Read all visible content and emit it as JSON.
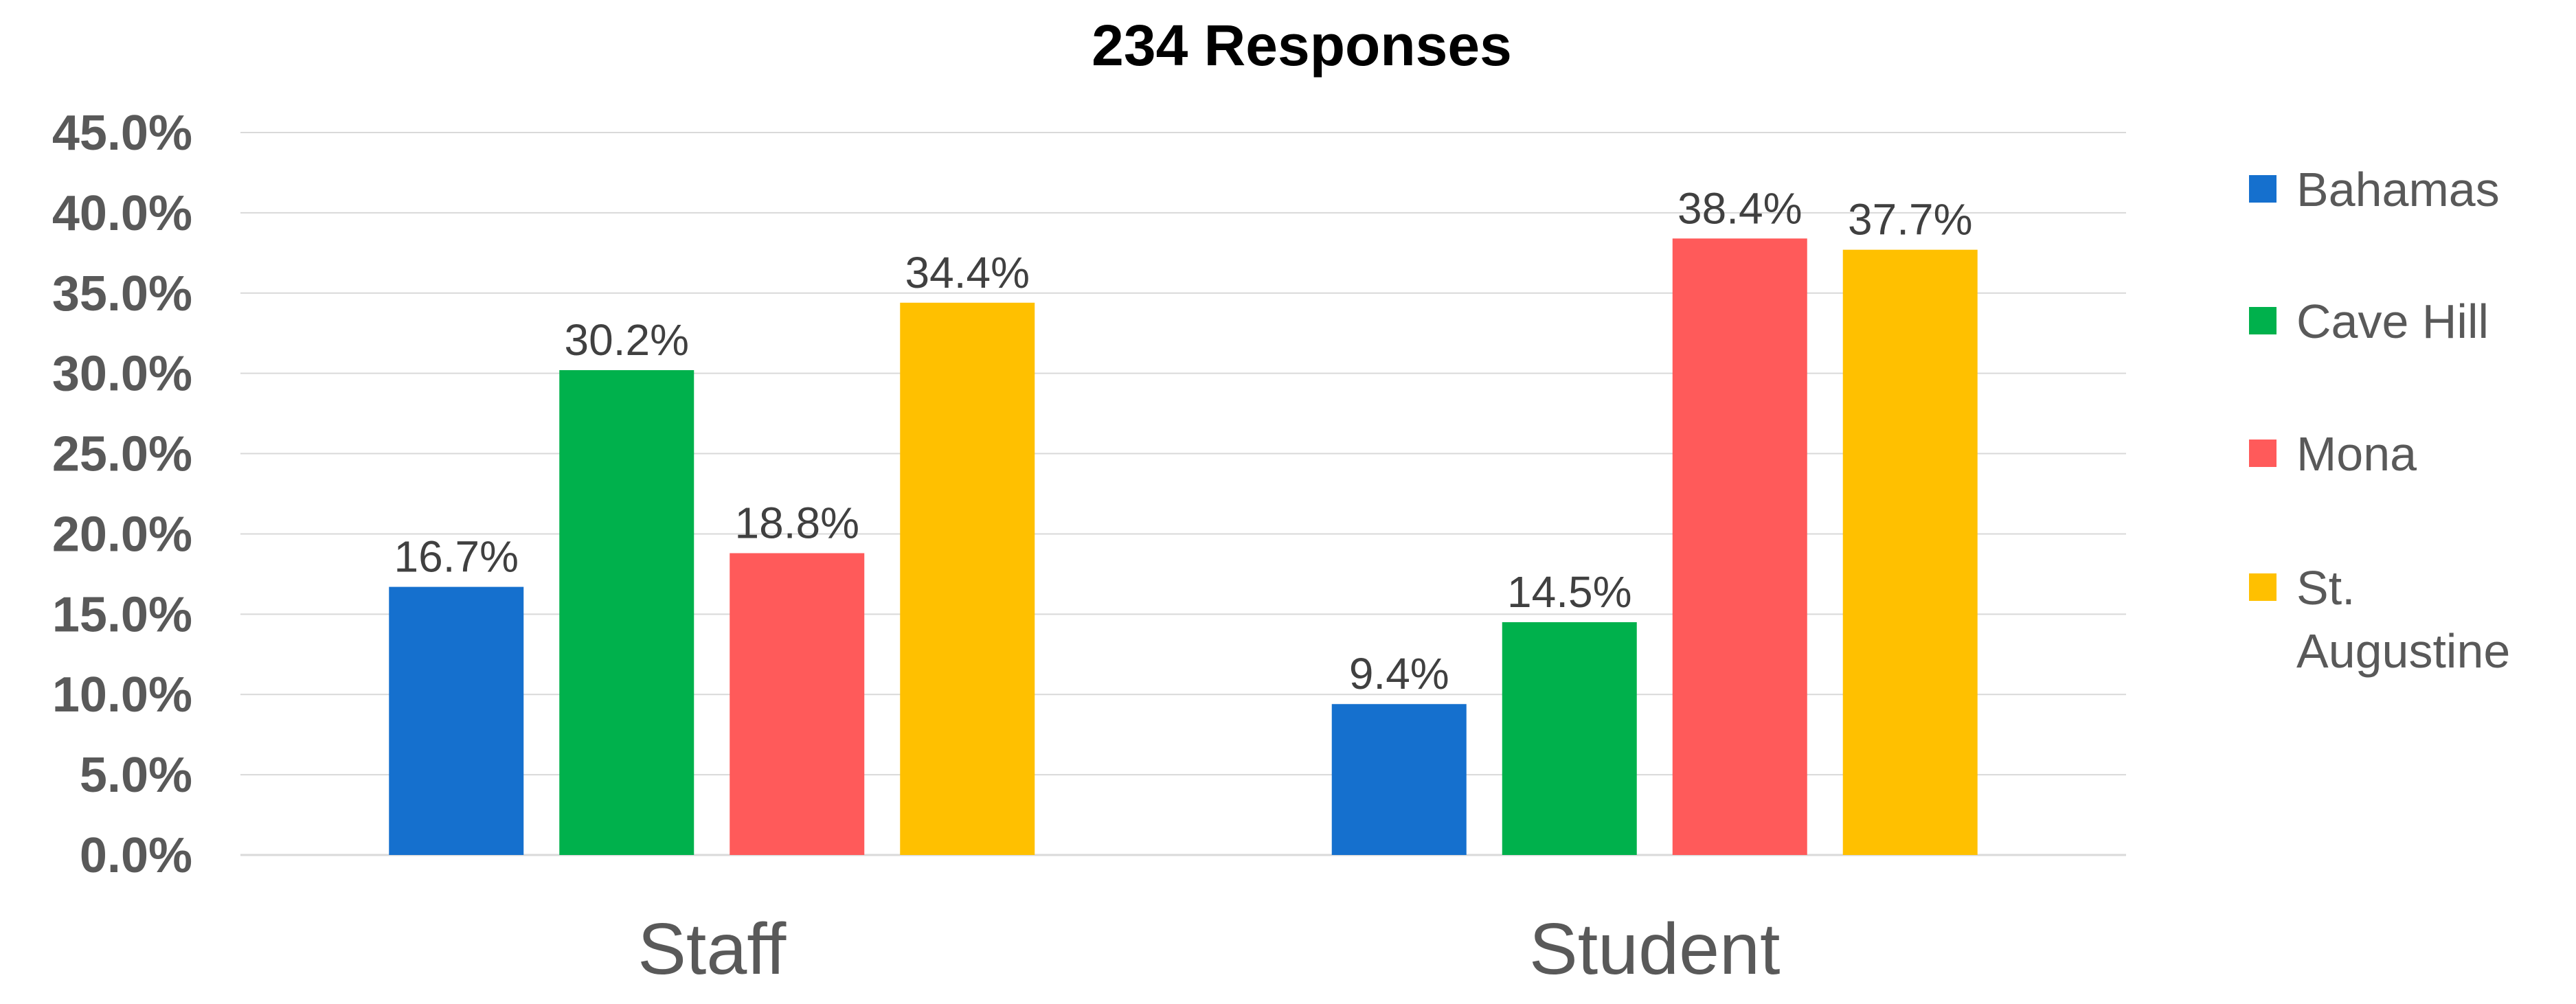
{
  "chart_data": {
    "type": "bar",
    "title": "234 Responses",
    "xlabel": "",
    "ylabel": "",
    "ylim": [
      0,
      45
    ],
    "yticks": [
      "0.0%",
      "5.0%",
      "10.0%",
      "15.0%",
      "20.0%",
      "25.0%",
      "30.0%",
      "35.0%",
      "40.0%",
      "45.0%"
    ],
    "categories": [
      "Staff",
      "Student"
    ],
    "series": [
      {
        "name": "Bahamas",
        "color": "#1570CE",
        "values": [
          16.7,
          9.4
        ],
        "labels": [
          "16.7%",
          "9.4%"
        ]
      },
      {
        "name": "Cave Hill",
        "color": "#00B14C",
        "values": [
          30.2,
          14.5
        ],
        "labels": [
          "30.2%",
          "14.5%"
        ]
      },
      {
        "name": "Mona",
        "color": "#FF5A5A",
        "values": [
          18.8,
          38.4
        ],
        "labels": [
          "18.8%",
          "38.4%"
        ]
      },
      {
        "name": "St. Augustine",
        "color": "#FFC000",
        "values": [
          34.4,
          37.7
        ],
        "labels": [
          "34.4%",
          "37.7%"
        ]
      }
    ],
    "grid": true,
    "legend": "right"
  }
}
